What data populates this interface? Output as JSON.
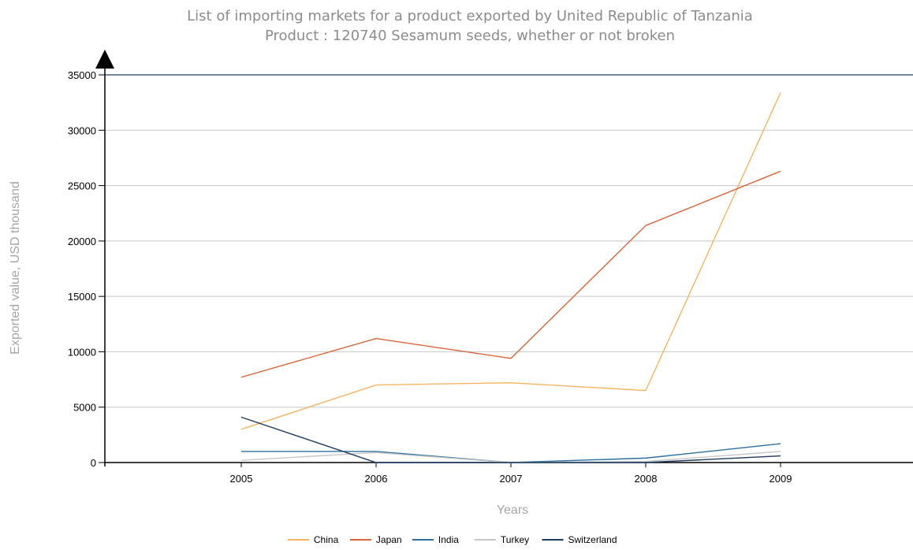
{
  "chart_data": {
    "type": "line",
    "title": "List of importing markets for a product exported by United Republic of Tanzania",
    "subtitle": "Product : 120740 Sesamum seeds, whether or not broken",
    "xlabel": "Years",
    "ylabel": "Exported value, USD thousand",
    "x": [
      "2005",
      "2006",
      "2007",
      "2008",
      "2009"
    ],
    "ylim": [
      0,
      35000
    ],
    "yticks": [
      0,
      5000,
      10000,
      15000,
      20000,
      25000,
      30000,
      35000
    ],
    "grid": true,
    "legend_position": "bottom",
    "series": [
      {
        "name": "China",
        "color": "#f5b461",
        "values": [
          3000,
          7000,
          7200,
          6500,
          33400
        ]
      },
      {
        "name": "Japan",
        "color": "#d9643a",
        "values": [
          7700,
          11200,
          9400,
          21400,
          26300
        ]
      },
      {
        "name": "India",
        "color": "#2f6f9f",
        "values": [
          1000,
          1000,
          0,
          400,
          1700
        ]
      },
      {
        "name": "Turkey",
        "color": "#c6c6c6",
        "values": [
          200,
          900,
          0,
          100,
          1000
        ]
      },
      {
        "name": "Switzerland",
        "color": "#1f3a5f",
        "values": [
          4100,
          0,
          0,
          0,
          600
        ]
      }
    ]
  }
}
